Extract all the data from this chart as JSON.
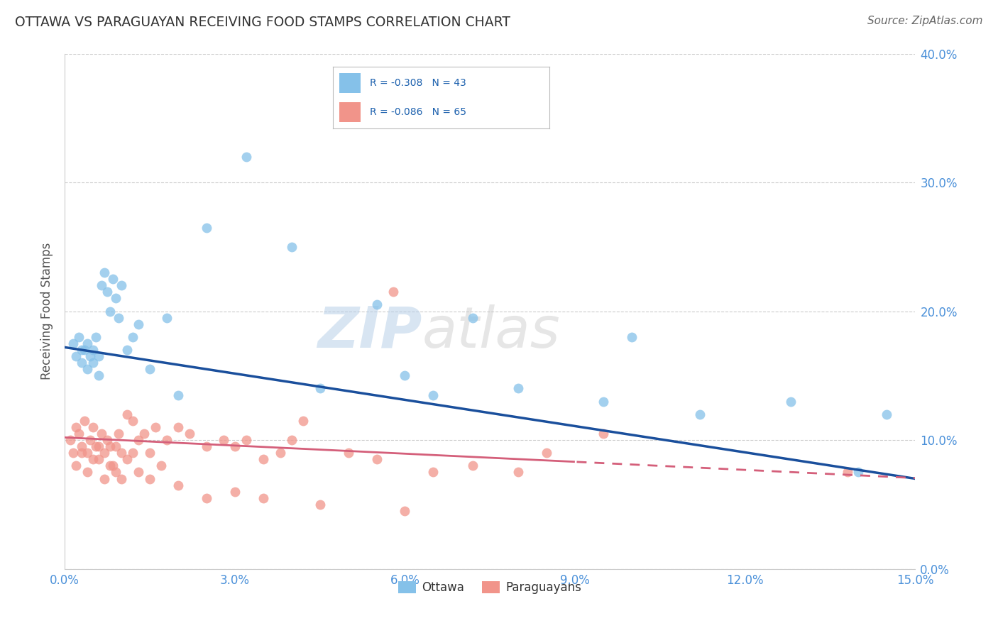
{
  "title": "OTTAWA VS PARAGUAYAN RECEIVING FOOD STAMPS CORRELATION CHART",
  "source": "Source: ZipAtlas.com",
  "ylabel": "Receiving Food Stamps",
  "xlim": [
    0.0,
    15.0
  ],
  "ylim": [
    0.0,
    40.0
  ],
  "xticks": [
    0.0,
    3.0,
    6.0,
    9.0,
    12.0,
    15.0
  ],
  "yticks": [
    0.0,
    10.0,
    20.0,
    30.0,
    40.0
  ],
  "ottawa_color": "#85C1E9",
  "paraguayan_color": "#F1948A",
  "regression_blue": "#1A4F9C",
  "regression_pink": "#D45F7A",
  "background": "#FFFFFF",
  "watermark_zip": "ZIP",
  "watermark_atlas": "atlas",
  "legend_r_ottawa": "R = -0.308",
  "legend_n_ottawa": "N = 43",
  "legend_r_paraguayan": "R = -0.086",
  "legend_n_paraguayan": "N = 65",
  "ottawa_intercept": 17.2,
  "ottawa_slope": -0.68,
  "paraguayan_intercept": 10.2,
  "paraguayan_slope": -0.21,
  "para_solid_end": 9.0,
  "ottawa_x": [
    0.15,
    0.2,
    0.25,
    0.3,
    0.35,
    0.4,
    0.45,
    0.5,
    0.55,
    0.6,
    0.65,
    0.7,
    0.75,
    0.8,
    0.85,
    0.9,
    0.95,
    1.0,
    1.1,
    1.2,
    1.3,
    1.5,
    1.8,
    2.0,
    2.5,
    3.2,
    4.0,
    4.5,
    5.5,
    6.0,
    6.5,
    7.2,
    8.0,
    9.5,
    10.0,
    11.2,
    12.8,
    14.0,
    14.5,
    0.3,
    0.4,
    0.5,
    0.6
  ],
  "ottawa_y": [
    17.5,
    16.5,
    18.0,
    16.0,
    17.0,
    17.5,
    16.5,
    17.0,
    18.0,
    16.5,
    22.0,
    23.0,
    21.5,
    20.0,
    22.5,
    21.0,
    19.5,
    22.0,
    17.0,
    18.0,
    19.0,
    15.5,
    19.5,
    13.5,
    26.5,
    32.0,
    25.0,
    14.0,
    20.5,
    15.0,
    13.5,
    19.5,
    14.0,
    13.0,
    18.0,
    12.0,
    13.0,
    7.5,
    12.0,
    17.0,
    15.5,
    16.0,
    15.0
  ],
  "paraguayan_x": [
    0.1,
    0.15,
    0.2,
    0.25,
    0.3,
    0.35,
    0.4,
    0.45,
    0.5,
    0.55,
    0.6,
    0.65,
    0.7,
    0.75,
    0.8,
    0.85,
    0.9,
    0.95,
    1.0,
    1.1,
    1.2,
    1.3,
    1.4,
    1.5,
    1.6,
    1.8,
    2.0,
    2.2,
    2.5,
    2.8,
    3.0,
    3.2,
    3.5,
    3.8,
    4.0,
    4.2,
    5.0,
    5.5,
    5.8,
    6.5,
    7.2,
    8.0,
    8.5,
    9.5,
    13.8,
    0.2,
    0.3,
    0.4,
    0.5,
    0.6,
    0.7,
    0.8,
    0.9,
    1.0,
    1.1,
    1.2,
    1.3,
    1.5,
    1.7,
    2.0,
    2.5,
    3.0,
    3.5,
    4.5,
    6.0
  ],
  "paraguayan_y": [
    10.0,
    9.0,
    11.0,
    10.5,
    9.5,
    11.5,
    9.0,
    10.0,
    11.0,
    9.5,
    8.5,
    10.5,
    9.0,
    10.0,
    9.5,
    8.0,
    9.5,
    10.5,
    9.0,
    12.0,
    11.5,
    10.0,
    10.5,
    9.0,
    11.0,
    10.0,
    11.0,
    10.5,
    9.5,
    10.0,
    9.5,
    10.0,
    8.5,
    9.0,
    10.0,
    11.5,
    9.0,
    8.5,
    21.5,
    7.5,
    8.0,
    7.5,
    9.0,
    10.5,
    7.5,
    8.0,
    9.0,
    7.5,
    8.5,
    9.5,
    7.0,
    8.0,
    7.5,
    7.0,
    8.5,
    9.0,
    7.5,
    7.0,
    8.0,
    6.5,
    5.5,
    6.0,
    5.5,
    5.0,
    4.5
  ]
}
